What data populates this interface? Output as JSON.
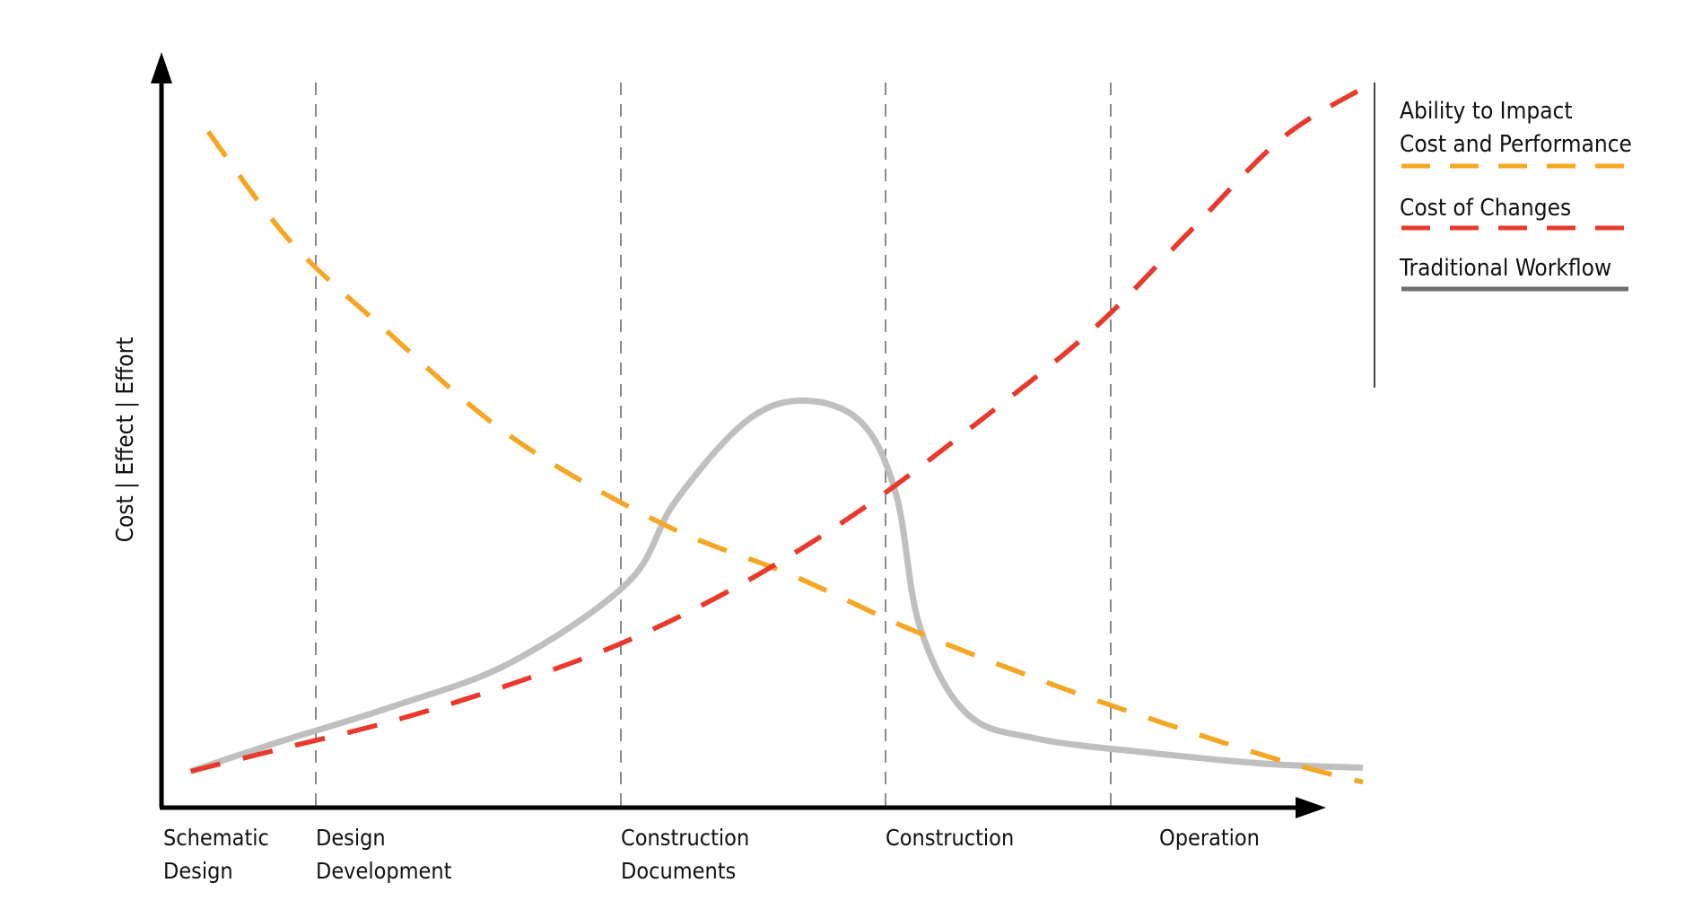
{
  "chart_data": {
    "type": "line",
    "title": "",
    "xlabel": "",
    "ylabel": "Cost | Effect | Effort",
    "categories": [
      {
        "line1": "Schematic",
        "line2": "Design"
      },
      {
        "line1": "Design",
        "line2": "Development"
      },
      {
        "line1": "Construction",
        "line2": "Documents"
      },
      {
        "line1": "Construction",
        "line2": ""
      },
      {
        "line1": "Operation",
        "line2": ""
      }
    ],
    "grid": "vertical dashed phase dividers",
    "legend_placement": "right",
    "xlim": [
      0,
      10
    ],
    "ylim": [
      0,
      10
    ],
    "series": [
      {
        "name_line1": "Ability to Impact",
        "name_line2": "Cost and Performance",
        "color": "#F5A623",
        "style": "dashed",
        "x": [
          0.4,
          1.1,
          1.9,
          3.0,
          4.3,
          5.4,
          6.5,
          7.8,
          8.9,
          9.7,
          10.3
        ],
        "y": [
          9.3,
          7.8,
          6.6,
          5.1,
          3.9,
          3.2,
          2.4,
          1.6,
          1.0,
          0.6,
          0.35
        ]
      },
      {
        "name_line1": "Cost of Changes",
        "name_line2": "",
        "color": "#E8392C",
        "style": "dashed",
        "x": [
          0.25,
          1.0,
          2.0,
          3.0,
          4.0,
          5.0,
          6.0,
          7.0,
          8.0,
          8.8,
          9.6,
          10.3
        ],
        "y": [
          0.5,
          0.8,
          1.2,
          1.7,
          2.3,
          3.1,
          4.1,
          5.3,
          6.6,
          7.9,
          9.2,
          9.9
        ]
      },
      {
        "name_line1": "Traditional Workflow",
        "name_line2": "",
        "color": "#BFBFBF",
        "style": "solid",
        "x": [
          0.25,
          1.0,
          2.0,
          3.0,
          4.0,
          4.4,
          5.0,
          5.5,
          6.0,
          6.3,
          6.5,
          6.9,
          7.5,
          8.5,
          9.5,
          10.3
        ],
        "y": [
          0.5,
          0.9,
          1.4,
          2.0,
          3.1,
          4.2,
          5.3,
          5.6,
          5.3,
          4.3,
          2.5,
          1.3,
          0.95,
          0.75,
          0.6,
          0.55
        ]
      }
    ],
    "legend_colors": {
      "legend_divider": "#444444",
      "traditional_workflow_legend": "#6E6E6E"
    }
  }
}
